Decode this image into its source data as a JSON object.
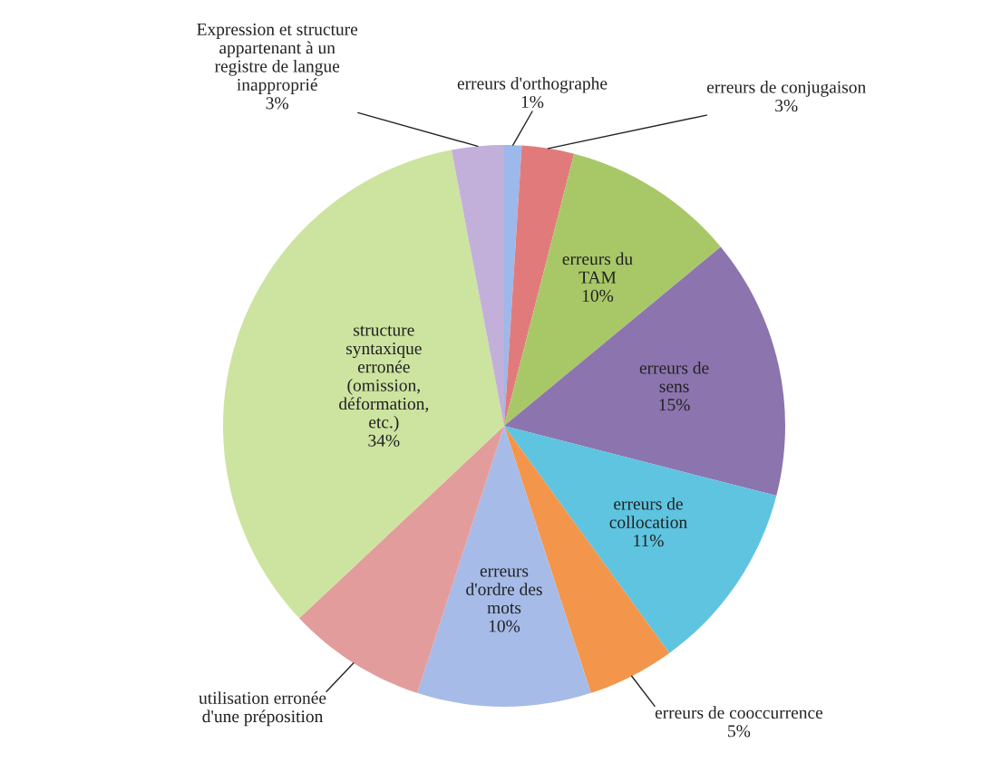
{
  "chart_data": {
    "type": "pie",
    "categories": [
      "erreurs d'orthographe",
      "erreurs de conjugaison",
      "erreurs du TAM",
      "erreurs de sens",
      "erreurs de collocation",
      "erreurs de cooccurrence",
      "erreurs d'ordre des mots",
      "utilisation erronée d'une préposition",
      "structure syntaxique erronée (omission, déformation, etc.)",
      "Expression et structure appartenant à un registre de langue inapproprié"
    ],
    "values": [
      1,
      3,
      10,
      15,
      11,
      5,
      10,
      8,
      34,
      3
    ],
    "colors": [
      "#9db8ea",
      "#e17b7b",
      "#a8c867",
      "#8c74ae",
      "#5ec4e0",
      "#f3954a",
      "#a6bbe8",
      "#e39c9c",
      "#cde3a0",
      "#c2b0da"
    ],
    "value_labels": [
      "1%",
      "3%",
      "10%",
      "15%",
      "11%",
      "5%",
      "10%",
      null,
      "34%",
      "3%"
    ]
  }
}
